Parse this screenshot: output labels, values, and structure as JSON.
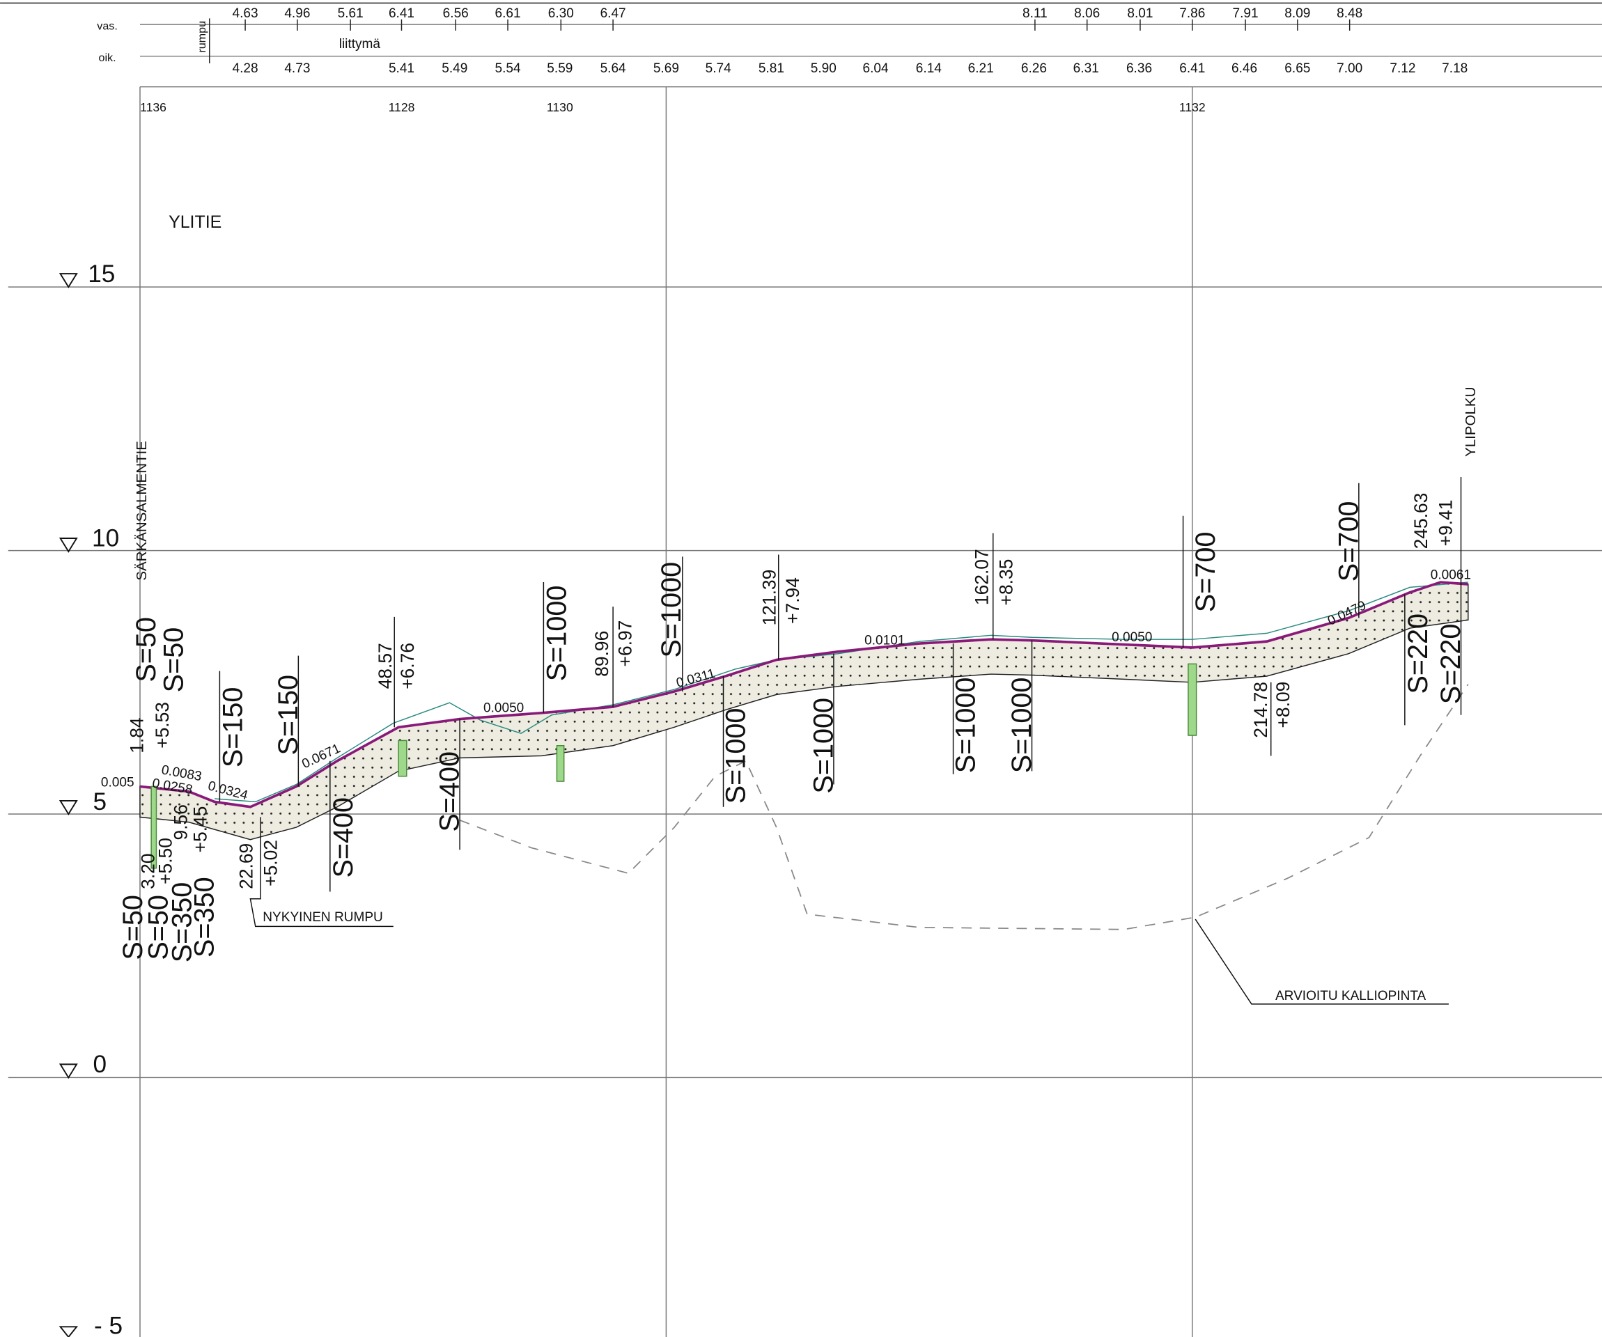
{
  "header": {
    "vas_label": "vas.",
    "oik_label": "oik.",
    "rumpu": "rumpu",
    "liittyma": "liittymä"
  },
  "vas_values": [
    "4.63",
    "4.96",
    "5.61",
    "6.41",
    "6.56",
    "6.61",
    "6.30",
    "6.47",
    "8.11",
    "8.06",
    "8.01",
    "7.86",
    "7.91",
    "8.09",
    "8.48"
  ],
  "oik_values": [
    "4.28",
    "4.73",
    "5.41",
    "5.49",
    "5.54",
    "5.59",
    "5.64",
    "5.69",
    "5.74",
    "5.81",
    "5.90",
    "6.04",
    "6.14",
    "6.21",
    "6.26",
    "6.31",
    "6.36",
    "6.41",
    "6.46",
    "6.65",
    "7.00",
    "7.12",
    "7.18"
  ],
  "stations": [
    "1136",
    "1128",
    "1130",
    "1132"
  ],
  "elevations": [
    "15",
    "10",
    "5",
    "0",
    "- 5"
  ],
  "labels": {
    "title": "YLITIE",
    "start_road": "SÄRKÄNSALMENTIE",
    "end_road": "YLIPOLKU",
    "culvert": "NYKYINEN RUMPU",
    "rock": "ARVIOITU KALLIOPINTA"
  },
  "grades": [
    "0.005",
    "0.0083",
    "0.0258",
    "0.0324",
    "0.0671",
    "0.0050",
    "0.0311",
    "0.0101",
    "0.0050",
    "0.0479",
    "0.0061"
  ],
  "curves": [
    "S=50",
    "S=50",
    "S=150",
    "S=150",
    "S=1000",
    "S=1000",
    "S=700",
    "S=700",
    "S=400",
    "S=400",
    "S=1000",
    "S=1000",
    "S=1000",
    "S=1000",
    "S=220",
    "S=220",
    "S=50",
    "S=50",
    "S=350",
    "S=350"
  ],
  "stakes": [
    "48.57",
    "+6.76",
    "89.96",
    "+6.97",
    "121.39",
    "+7.94",
    "162.07",
    "+8.35",
    "245.63",
    "+9.41",
    "214.78",
    "+8.09",
    "22.69",
    "+5.02",
    "1.84",
    "+5.53",
    "9.56",
    "+5.45",
    "3.20",
    "+5.50"
  ]
}
